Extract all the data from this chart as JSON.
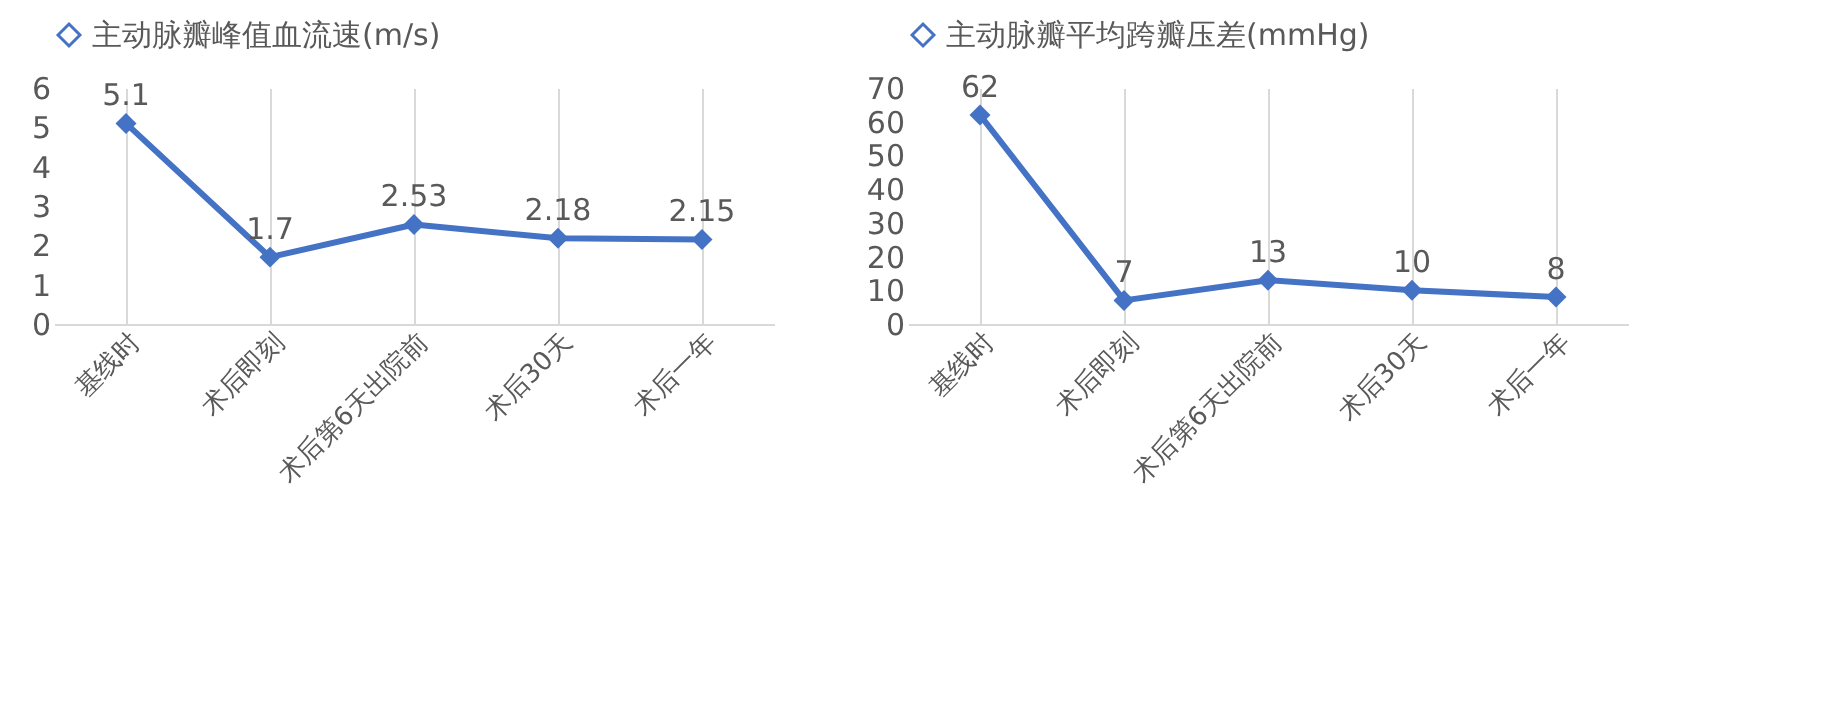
{
  "chart_data": [
    {
      "type": "line",
      "categories": [
        "基线时",
        "术后即刻",
        "术后第6天出院前",
        "术后30天",
        "术后一年"
      ],
      "series": [
        {
          "name": "主动脉瓣峰值血流速(m/s)",
          "color": "#4472c4",
          "values": [
            5.1,
            1.7,
            2.53,
            2.18,
            2.15
          ]
        }
      ],
      "ylim": [
        0,
        6
      ],
      "yticks": [
        0,
        1,
        2,
        3,
        4,
        5,
        6
      ],
      "grid": "x",
      "legend": "top",
      "data_labels": true,
      "marker": "diamond",
      "line_style": "solid"
    },
    {
      "type": "line",
      "categories": [
        "基线时",
        "术后即刻",
        "术后第6天出院前",
        "术后30天",
        "术后一年"
      ],
      "series": [
        {
          "name": "主动脉瓣平均跨瓣压差(mmHg)",
          "color": "#4472c4",
          "values": [
            62,
            7,
            13,
            10,
            8
          ]
        }
      ],
      "ylim": [
        0,
        70
      ],
      "yticks": [
        0,
        10,
        20,
        30,
        40,
        50,
        60,
        70
      ],
      "grid": "x",
      "legend": "top",
      "data_labels": true,
      "marker": "diamond",
      "line_style": "solid"
    }
  ]
}
